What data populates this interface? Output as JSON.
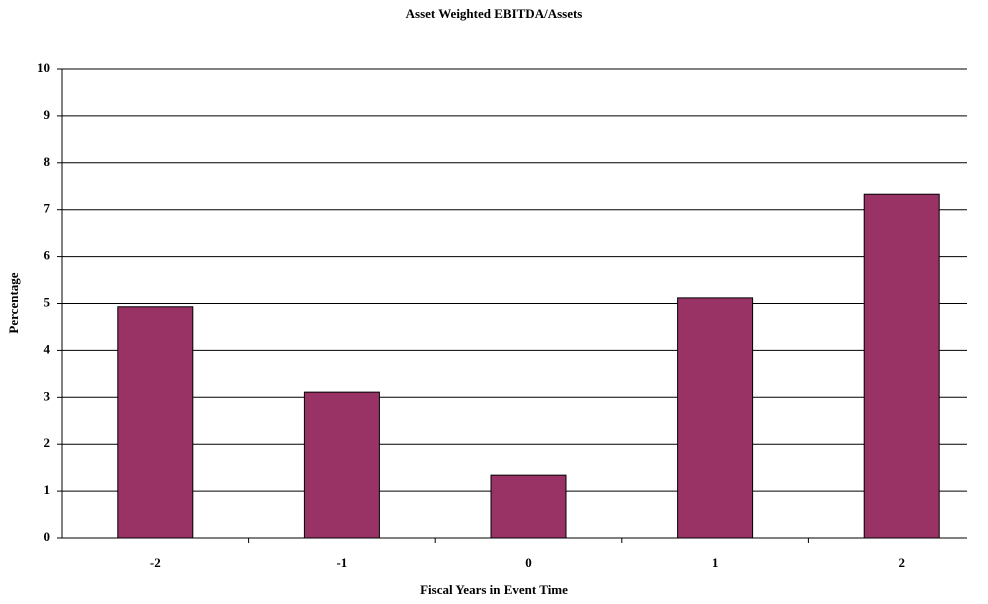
{
  "chart_data": {
    "type": "bar",
    "title": "Asset Weighted EBITDA/Assets",
    "x_label": "Fiscal Years in Event Time",
    "y_label": "Percentage",
    "categories": [
      "-2",
      "-1",
      "0",
      "1",
      "2"
    ],
    "values": [
      4.93,
      3.11,
      1.34,
      5.12,
      7.33
    ],
    "color": "#993366",
    "ylim": [
      0,
      10
    ],
    "yticks": [
      0,
      1,
      2,
      3,
      4,
      5,
      6,
      7,
      8,
      9,
      10
    ],
    "grid": true
  }
}
